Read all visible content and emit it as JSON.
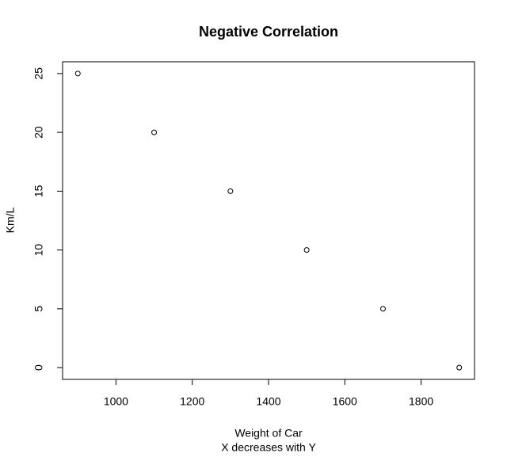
{
  "chart_data": {
    "type": "scatter",
    "title": "Negative Correlation",
    "x_label": "Weight of Car",
    "subtitle": "X decreases with Y",
    "y_label": "Km/L",
    "x": [
      900,
      1100,
      1300,
      1500,
      1700,
      1900
    ],
    "series": [
      {
        "values": [
          25,
          20,
          15,
          10,
          5,
          0
        ],
        "color": "#000000"
      }
    ],
    "xlim": [
      860,
      1940
    ],
    "ylim": [
      -1,
      26
    ],
    "xticks": [
      1000,
      1200,
      1400,
      1600,
      1800
    ],
    "yticks": [
      0,
      5,
      10,
      15,
      20,
      25
    ],
    "grid": false
  }
}
